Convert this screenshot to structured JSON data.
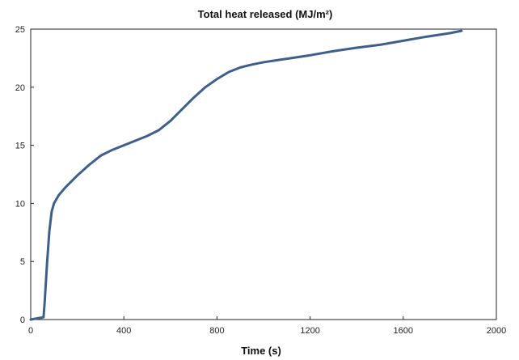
{
  "chart_data": {
    "type": "line",
    "title": "Total heat released (MJ/m²)",
    "xlabel": "Time (s)",
    "ylabel": "",
    "xlim": [
      0,
      2000
    ],
    "ylim": [
      0,
      25
    ],
    "x_ticks": [
      0,
      400,
      800,
      1200,
      1600,
      2000
    ],
    "y_ticks": [
      0,
      5,
      10,
      15,
      20,
      25
    ],
    "x_tick_labels": [
      "0",
      "400",
      "800",
      "1200",
      "1600",
      "2000"
    ],
    "y_tick_labels": [
      "0",
      "5",
      "10",
      "15",
      "20",
      "25"
    ],
    "grid": false,
    "legend": "none",
    "line_color": "#3e5f8a",
    "series": [
      {
        "x": [
          0,
          55,
          60,
          70,
          80,
          90,
          100,
          120,
          150,
          200,
          250,
          300,
          350,
          400,
          450,
          500,
          550,
          600,
          650,
          700,
          750,
          800,
          850,
          900,
          950,
          1000,
          1050,
          1100,
          1150,
          1200,
          1300,
          1400,
          1500,
          1600,
          1700,
          1800,
          1850
        ],
        "y": [
          0,
          0.2,
          1.5,
          4.8,
          7.6,
          9.3,
          10.0,
          10.7,
          11.4,
          12.4,
          13.3,
          14.1,
          14.6,
          15.0,
          15.4,
          15.8,
          16.3,
          17.1,
          18.1,
          19.1,
          20.0,
          20.7,
          21.3,
          21.7,
          21.95,
          22.15,
          22.3,
          22.45,
          22.6,
          22.75,
          23.1,
          23.4,
          23.65,
          24.0,
          24.35,
          24.65,
          24.85
        ]
      }
    ]
  }
}
